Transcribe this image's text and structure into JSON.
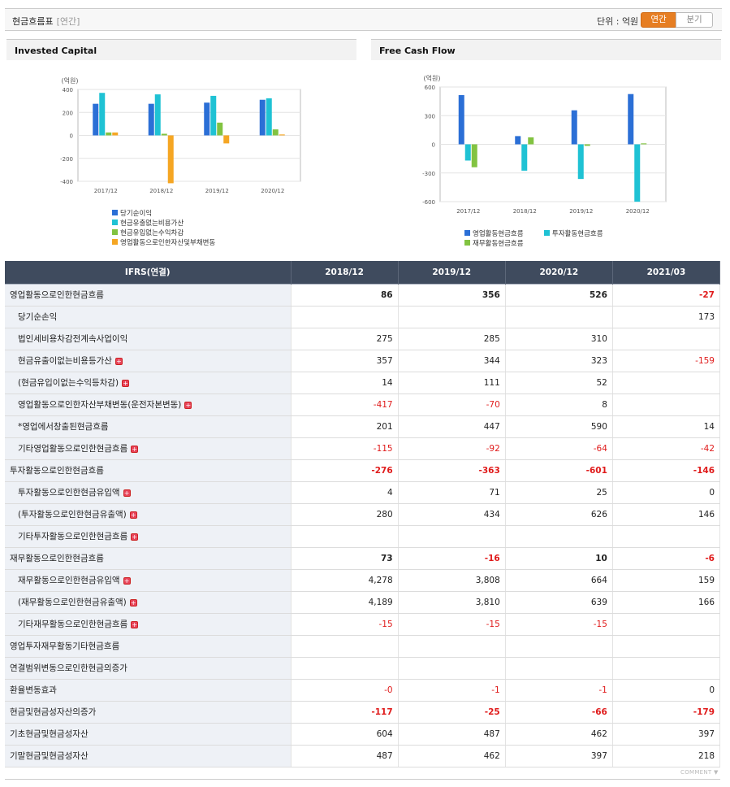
{
  "header": {
    "title": "현금흐름표",
    "subtitle": "[연간]",
    "unit_label": "단위 : 억원",
    "toggle_annual": "연간",
    "toggle_quarter": "분기"
  },
  "chart_data": [
    {
      "type": "bar",
      "title": "Invested Capital",
      "ylabel": "(억원)",
      "ylim": [
        -400,
        400
      ],
      "yticks": [
        400,
        200,
        0,
        -200,
        -400
      ],
      "categories": [
        "2017/12",
        "2018/12",
        "2019/12",
        "2020/12"
      ],
      "series": [
        {
          "name": "당기순이익",
          "color": "#2b6fd6",
          "values": [
            275,
            275,
            285,
            310
          ]
        },
        {
          "name": "현금유출없는비용가산",
          "color": "#1fc2d4",
          "values": [
            370,
            357,
            344,
            323
          ]
        },
        {
          "name": "현금유입없는수익차감",
          "color": "#82c341",
          "values": [
            25,
            14,
            111,
            52
          ]
        },
        {
          "name": "영업활동으로인한자산및부채변동",
          "color": "#f5a623",
          "values": [
            25,
            -417,
            -70,
            8
          ]
        }
      ]
    },
    {
      "type": "bar",
      "title": "Free Cash Flow",
      "ylabel": "(억원)",
      "ylim": [
        -600,
        600
      ],
      "yticks": [
        600,
        300,
        0,
        -300,
        -600
      ],
      "categories": [
        "2017/12",
        "2018/12",
        "2019/12",
        "2020/12"
      ],
      "series": [
        {
          "name": "영업활동현금흐름",
          "color": "#2b6fd6",
          "values": [
            515,
            86,
            356,
            526
          ]
        },
        {
          "name": "투자활동현금흐름",
          "color": "#1fc2d4",
          "values": [
            -170,
            -276,
            -363,
            -601
          ]
        },
        {
          "name": "재무활동현금흐름",
          "color": "#82c341",
          "values": [
            -240,
            73,
            -16,
            10
          ]
        }
      ]
    }
  ],
  "table": {
    "corner": "IFRS(연결)",
    "columns": [
      "2018/12",
      "2019/12",
      "2020/12",
      "2021/03"
    ],
    "rows": [
      {
        "label": "영업활동으로인한현금흐름",
        "level": 0,
        "major": true,
        "bold": true,
        "values": [
          "86",
          "356",
          "526",
          "-27"
        ]
      },
      {
        "label": "당기순손익",
        "level": 1,
        "values": [
          "",
          "",
          "",
          "173"
        ]
      },
      {
        "label": "법인세비용차감전계속사업이익",
        "level": 1,
        "values": [
          "275",
          "285",
          "310",
          ""
        ]
      },
      {
        "label": "현금유출이없는비용등가산",
        "level": 1,
        "plus": true,
        "values": [
          "357",
          "344",
          "323",
          "-159"
        ]
      },
      {
        "label": "(현금유입이없는수익등차감)",
        "level": 1,
        "plus": true,
        "values": [
          "14",
          "111",
          "52",
          ""
        ]
      },
      {
        "label": "영업활동으로인한자산부채변동(운전자본변동)",
        "level": 1,
        "plus": true,
        "values": [
          "-417",
          "-70",
          "8",
          ""
        ]
      },
      {
        "label": "*영업에서창출된현금흐름",
        "level": 1,
        "values": [
          "201",
          "447",
          "590",
          "14"
        ]
      },
      {
        "label": "기타영업활동으로인한현금흐름",
        "level": 1,
        "plus": true,
        "values": [
          "-115",
          "-92",
          "-64",
          "-42"
        ]
      },
      {
        "label": "투자활동으로인한현금흐름",
        "level": 0,
        "major": true,
        "bold": true,
        "values": [
          "-276",
          "-363",
          "-601",
          "-146"
        ]
      },
      {
        "label": "투자활동으로인한현금유입액",
        "level": 1,
        "plus": true,
        "values": [
          "4",
          "71",
          "25",
          "0"
        ]
      },
      {
        "label": "(투자활동으로인한현금유출액)",
        "level": 1,
        "plus": true,
        "values": [
          "280",
          "434",
          "626",
          "146"
        ]
      },
      {
        "label": "기타투자활동으로인한현금흐름",
        "level": 1,
        "plus": true,
        "values": [
          "",
          "",
          "",
          ""
        ]
      },
      {
        "label": "재무활동으로인한현금흐름",
        "level": 0,
        "major": true,
        "bold": true,
        "values": [
          "73",
          "-16",
          "10",
          "-6"
        ]
      },
      {
        "label": "재무활동으로인한현금유입액",
        "level": 1,
        "plus": true,
        "values": [
          "4,278",
          "3,808",
          "664",
          "159"
        ]
      },
      {
        "label": "(재무활동으로인한현금유출액)",
        "level": 1,
        "plus": true,
        "values": [
          "4,189",
          "3,810",
          "639",
          "166"
        ]
      },
      {
        "label": "기타재무활동으로인한현금흐름",
        "level": 1,
        "plus": true,
        "values": [
          "-15",
          "-15",
          "-15",
          ""
        ]
      },
      {
        "label": "영업투자재무활동기타현금흐름",
        "level": 0,
        "values": [
          "",
          "",
          "",
          ""
        ]
      },
      {
        "label": "연결범위변동으로인한현금의증가",
        "level": 0,
        "values": [
          "",
          "",
          "",
          ""
        ]
      },
      {
        "label": "환율변동효과",
        "level": 0,
        "values": [
          "-0",
          "-1",
          "-1",
          "0"
        ]
      },
      {
        "label": "현금및현금성자산의증가",
        "level": 0,
        "bold": true,
        "values": [
          "-117",
          "-25",
          "-66",
          "-179"
        ]
      },
      {
        "label": "기초현금및현금성자산",
        "level": 0,
        "values": [
          "604",
          "487",
          "462",
          "397"
        ]
      },
      {
        "label": "기말현금및현금성자산",
        "level": 0,
        "values": [
          "487",
          "462",
          "397",
          "218"
        ]
      }
    ]
  },
  "footer": {
    "comment": "COMMENT ▼"
  }
}
